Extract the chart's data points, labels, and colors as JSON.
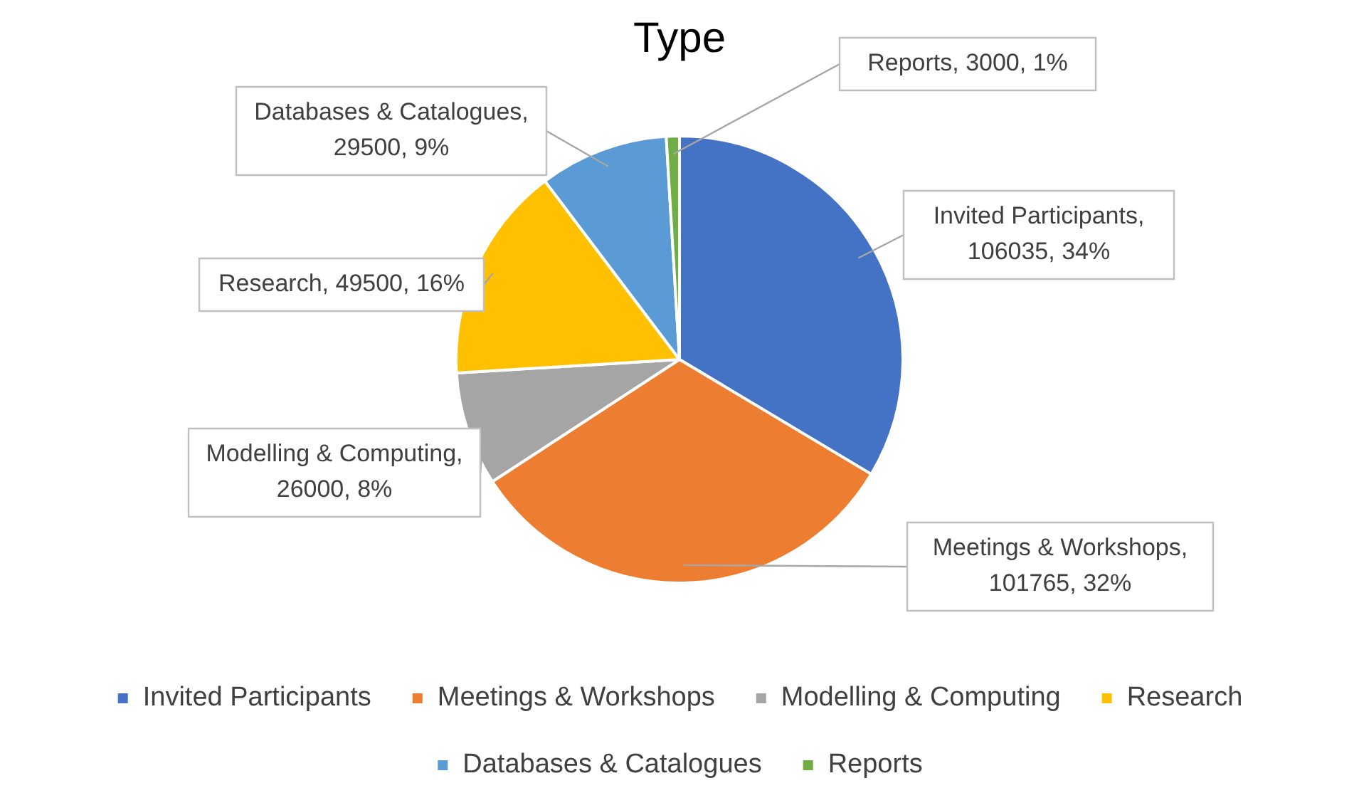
{
  "chart_data": {
    "type": "pie",
    "title": "Type",
    "categories": [
      "Invited Participants",
      "Meetings & Workshops",
      "Modelling & Computing",
      "Research",
      "Databases & Catalogues",
      "Reports"
    ],
    "values": [
      106035,
      101765,
      26000,
      49500,
      29500,
      3000
    ],
    "colors": [
      "#4472c4",
      "#ed7d31",
      "#a5a5a5",
      "#ffc000",
      "#5b9bd5",
      "#70ad47"
    ],
    "value_labels": [
      "Invited Participants, 106035, 34%",
      "Meetings & Workshops, 101765, 32%",
      "Modelling & Computing, 26000, 8%",
      "Research, 49500, 16%",
      "Databases & Catalogues, 29500, 9%",
      "Reports, 3000, 1%"
    ],
    "legend": "bottom"
  }
}
